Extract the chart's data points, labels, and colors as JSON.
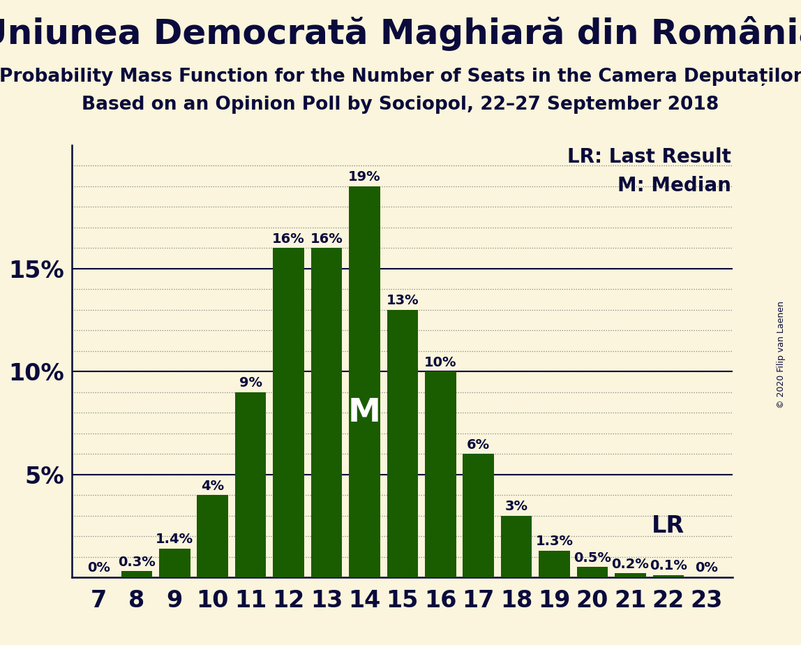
{
  "title": "Uniunea Democrată Maghiară din România",
  "subtitle1": "Probability Mass Function for the Number of Seats in the Camera Deputaților",
  "subtitle2": "Based on an Opinion Poll by Sociopol, 22–27 September 2018",
  "copyright": "© 2020 Filip van Laenen",
  "categories": [
    7,
    8,
    9,
    10,
    11,
    12,
    13,
    14,
    15,
    16,
    17,
    18,
    19,
    20,
    21,
    22,
    23
  ],
  "values": [
    0.0,
    0.3,
    1.4,
    4.0,
    9.0,
    16.0,
    16.0,
    19.0,
    13.0,
    10.0,
    6.0,
    3.0,
    1.3,
    0.5,
    0.2,
    0.1,
    0.0
  ],
  "bar_color": "#1a5c00",
  "background_color": "#faf5dc",
  "text_color": "#0a0a3c",
  "median_bar": 14,
  "lr_bar": 21,
  "legend_lr": "LR: Last Result",
  "legend_m": "M: Median",
  "ylim": [
    0,
    21
  ],
  "bar_label_fontsize": 14,
  "title_fontsize": 36,
  "subtitle_fontsize": 19,
  "axis_tick_fontsize": 24,
  "legend_fontsize": 20,
  "copyright_fontsize": 9
}
